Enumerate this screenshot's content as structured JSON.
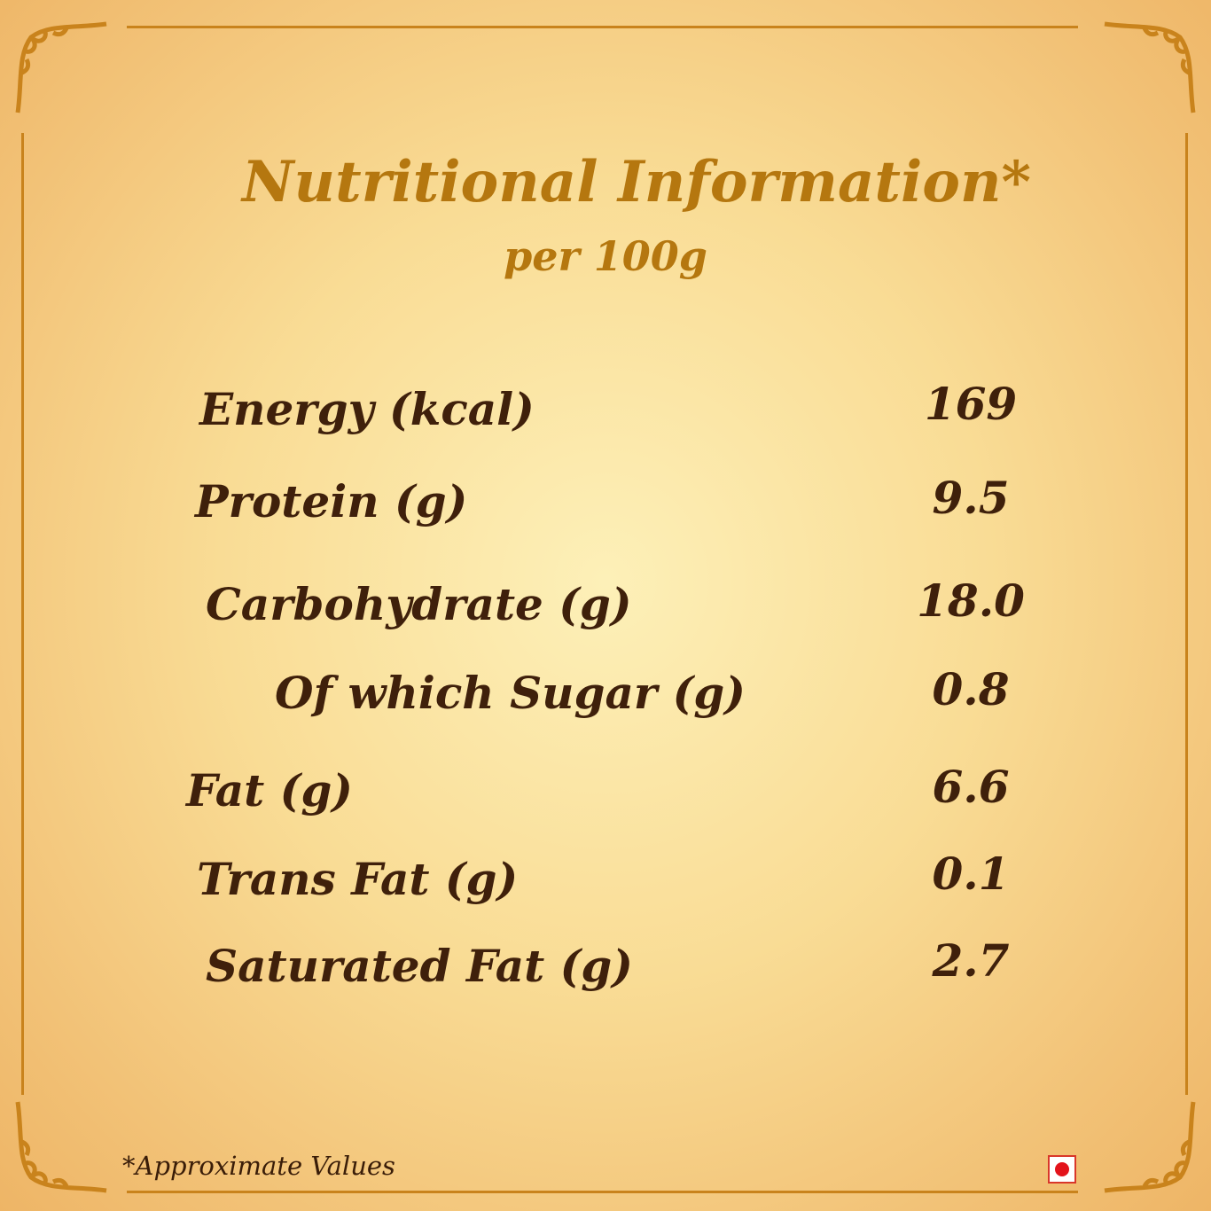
{
  "header": {
    "title": "Nutritional Information*",
    "subtitle": "per 100g"
  },
  "rows": [
    {
      "label": "Energy (kcal)",
      "value": "169"
    },
    {
      "label": "Protein (g)",
      "value": "9.5"
    },
    {
      "label": "Carbohydrate (g)",
      "value": "18.0"
    },
    {
      "label": "Of which Sugar (g)",
      "value": "0.8"
    },
    {
      "label": "Fat (g)",
      "value": "6.6"
    },
    {
      "label": "Trans Fat (g)",
      "value": "0.1"
    },
    {
      "label": "Saturated Fat (g)",
      "value": "2.7"
    }
  ],
  "footer": {
    "note": "*Approximate Values",
    "mark_icon": "non-veg-mark-icon"
  },
  "colors": {
    "title": "#b5770f",
    "text": "#3f200b",
    "border": "#c9831c",
    "mark": "#e3131b"
  }
}
